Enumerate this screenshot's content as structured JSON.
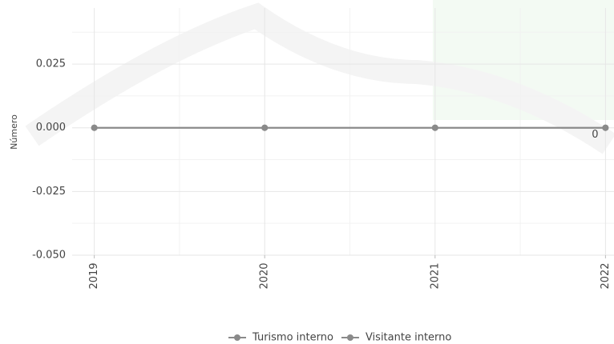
{
  "chart_data": {
    "type": "line",
    "y_label": "Número",
    "x": [
      2019,
      2020,
      2021,
      2022
    ],
    "xlim": [
      2018.87,
      2022.05
    ],
    "xticks": [
      2019,
      2020,
      2021,
      2022
    ],
    "ylim": [
      -0.05,
      0.047
    ],
    "yticks": [
      {
        "value": 0.025,
        "label": "0.025"
      },
      {
        "value": 0,
        "label": "0.000"
      },
      {
        "value": -0.025,
        "label": "-0.025"
      },
      {
        "value": -0.05,
        "label": "-0.050"
      }
    ],
    "grid": true,
    "legend": "bottom",
    "series": [
      {
        "name": "Turismo interno",
        "color": "#8a8a8a",
        "values": [
          0,
          0,
          0,
          0
        ]
      },
      {
        "name": "Visitante interno",
        "color": "#8a8a8a",
        "values": [
          0,
          0,
          0,
          0
        ]
      }
    ]
  }
}
